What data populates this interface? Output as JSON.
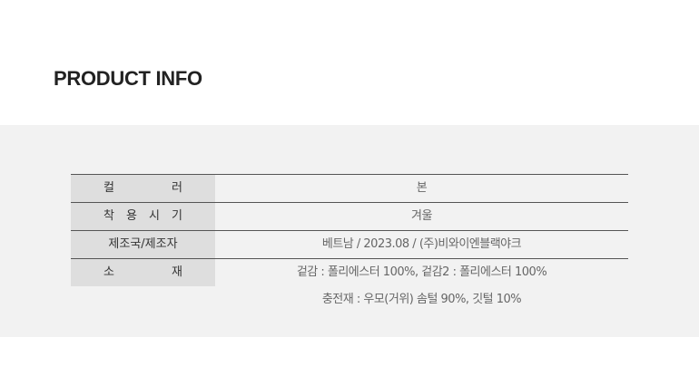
{
  "title": "PRODUCT INFO",
  "rows": [
    {
      "label": "컬 러",
      "value": "본"
    },
    {
      "label": "착 용 시 기",
      "value": "겨울"
    },
    {
      "label": "제조국/제조자",
      "value": "베트남 / 2023.08 / (주)비와이엔블랙야크"
    },
    {
      "label": "소 재",
      "value": "겉감 : 폴리에스터 100%, 겉감2 : 폴리에스터 100%",
      "value2": "충전재 : 우모(거위) 솜털 90%, 깃털 10%"
    }
  ]
}
